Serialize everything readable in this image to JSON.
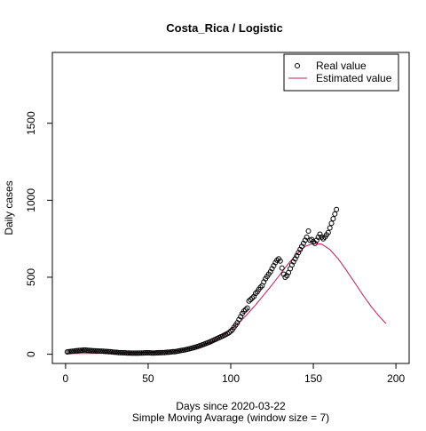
{
  "chart_data": {
    "type": "scatter",
    "title": "Costa_Rica / Logistic",
    "xlabel": "Days since 2020-03-22",
    "subtitle": "Simple Moving Avarage (window size = 7)",
    "ylabel": "Daily cases",
    "xlim": [
      -8,
      208
    ],
    "ylim": [
      -60,
      1960
    ],
    "x_ticks": [
      0,
      50,
      100,
      150,
      200
    ],
    "y_ticks": [
      0,
      500,
      1000,
      1500
    ],
    "legend_position": "top-right",
    "colors": {
      "points": "#000000",
      "curve": "#c2185b",
      "axes": "#000000"
    },
    "series": [
      {
        "name": "Real value",
        "kind": "points",
        "x": [
          1,
          2,
          3,
          4,
          5,
          6,
          7,
          8,
          9,
          10,
          11,
          12,
          13,
          14,
          15,
          16,
          17,
          18,
          19,
          20,
          21,
          22,
          23,
          24,
          25,
          26,
          27,
          28,
          29,
          30,
          31,
          32,
          33,
          34,
          35,
          36,
          37,
          38,
          39,
          40,
          41,
          42,
          43,
          44,
          45,
          46,
          47,
          48,
          49,
          50,
          51,
          52,
          53,
          54,
          55,
          56,
          57,
          58,
          59,
          60,
          61,
          62,
          63,
          64,
          65,
          66,
          67,
          68,
          69,
          70,
          71,
          72,
          73,
          74,
          75,
          76,
          77,
          78,
          79,
          80,
          81,
          82,
          83,
          84,
          85,
          86,
          87,
          88,
          89,
          90,
          91,
          92,
          93,
          94,
          95,
          96,
          97,
          98,
          99,
          100,
          101,
          102,
          103,
          104,
          105,
          106,
          107,
          108,
          109,
          110,
          111,
          112,
          113,
          114,
          115,
          116,
          117,
          118,
          119,
          120,
          121,
          122,
          123,
          124,
          125,
          126,
          127,
          128,
          129,
          130,
          131,
          132,
          133,
          134,
          135,
          136,
          137,
          138,
          139,
          140,
          141,
          142,
          143,
          144,
          145,
          146,
          147,
          148,
          149,
          150,
          151,
          152,
          153,
          154,
          155,
          156,
          157,
          158,
          159,
          160,
          161,
          162,
          163,
          164
        ],
        "y": [
          15,
          16,
          18,
          19,
          20,
          22,
          23,
          24,
          25,
          26,
          27,
          27,
          26,
          25,
          24,
          23,
          22,
          22,
          21,
          21,
          20,
          20,
          19,
          18,
          18,
          17,
          16,
          15,
          14,
          13,
          12,
          11,
          10,
          10,
          9,
          9,
          8,
          8,
          8,
          7,
          7,
          7,
          7,
          7,
          8,
          8,
          8,
          9,
          9,
          9,
          9,
          8,
          8,
          8,
          9,
          9,
          10,
          10,
          11,
          11,
          12,
          13,
          14,
          15,
          16,
          17,
          18,
          20,
          22,
          24,
          26,
          28,
          30,
          33,
          35,
          38,
          41,
          44,
          47,
          50,
          54,
          58,
          62,
          66,
          70,
          74,
          78,
          83,
          88,
          93,
          98,
          103,
          108,
          113,
          118,
          123,
          128,
          134,
          140,
          150,
          160,
          175,
          190,
          205,
          225,
          245,
          265,
          280,
          290,
          300,
          345,
          355,
          365,
          375,
          395,
          405,
          420,
          435,
          445,
          470,
          490,
          505,
          520,
          535,
          555,
          575,
          595,
          610,
          620,
          605,
          560,
          520,
          500,
          510,
          530,
          555,
          580,
          600,
          620,
          640,
          660,
          680,
          700,
          720,
          740,
          760,
          800,
          740,
          745,
          730,
          720,
          740,
          760,
          780,
          760,
          750,
          760,
          775,
          790,
          820,
          850,
          880,
          910,
          940
        ]
      },
      {
        "name": "Estimated value",
        "kind": "line",
        "x": [
          0,
          10,
          20,
          30,
          40,
          50,
          60,
          70,
          80,
          90,
          100,
          105,
          110,
          115,
          120,
          125,
          130,
          135,
          140,
          145,
          150,
          155,
          160,
          165,
          170,
          175,
          180,
          185,
          190,
          194
        ],
        "y": [
          5,
          5,
          6,
          7,
          9,
          12,
          17,
          26,
          45,
          85,
          160,
          205,
          260,
          320,
          385,
          450,
          520,
          590,
          650,
          700,
          720,
          715,
          680,
          620,
          545,
          465,
          385,
          310,
          245,
          200
        ]
      }
    ]
  }
}
